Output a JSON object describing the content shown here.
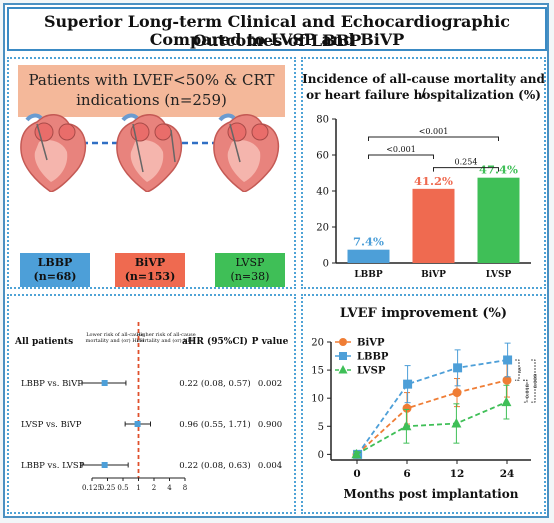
{
  "title": {
    "line1": "Superior Long-term Clinical and Echocardiographic Outcomes of LBBP",
    "line2": "Compared to LVSP and BiVP"
  },
  "patients": {
    "text_line1": "Patients with LVEF<50% & CRT",
    "text_line2": "indications (n=259)"
  },
  "groups": [
    {
      "name": "LBBP",
      "n": "(n=68)",
      "color": "#4d9fd8"
    },
    {
      "name": "BiVP",
      "n": "(n=153)",
      "color": "#ef6a50"
    },
    {
      "name": "LVSP",
      "n": "(n=38)",
      "color": "#3fbf57"
    }
  ],
  "chart_data": [
    {
      "type": "bar",
      "title": "Incidence of all-cause mortality and / or heart failure hospitalization (%)",
      "title_line1": "Incidence of all-cause mortality and /",
      "title_line2": "or heart failure hospitalization (%)",
      "categories": [
        "LBBP",
        "BiVP",
        "LVSP"
      ],
      "values": [
        7.4,
        41.2,
        47.4
      ],
      "value_labels": [
        "7.4%",
        "41.2%",
        "47.4%"
      ],
      "colors": [
        "#4d9fd8",
        "#ef6a50",
        "#3fbf57"
      ],
      "ylim": [
        0,
        80
      ],
      "yticks": [
        0,
        20,
        40,
        60,
        80
      ],
      "comparisons": [
        {
          "from": "LBBP",
          "to": "LVSP",
          "p": "<0.001"
        },
        {
          "from": "LBBP",
          "to": "BiVP",
          "p": "<0.001"
        },
        {
          "from": "BiVP",
          "to": "LVSP",
          "p": "0.254"
        }
      ]
    },
    {
      "type": "forest",
      "row_header": "All patients",
      "left_note_line1": "Lower risk of all-cause",
      "left_note_line2": "mortality and (or) HFH",
      "right_note_line1": "Higher risk of all-cause",
      "right_note_line2": "mortality and (or) HFH",
      "col_ahr": "aHR (95%CI)",
      "col_p": "P value",
      "x_ticks": [
        "0.125",
        "0.25",
        "0.5",
        "1",
        "2",
        "4",
        "8"
      ],
      "rows": [
        {
          "label": "LBBP vs. BiVP",
          "hr": 0.22,
          "lo": 0.08,
          "hi": 0.57,
          "text": "0.22 (0.08, 0.57)",
          "p": "0.002"
        },
        {
          "label": "LVSP vs. BiVP",
          "hr": 0.96,
          "lo": 0.55,
          "hi": 1.71,
          "text": "0.96 (0.55, 1.71)",
          "p": "0.900"
        },
        {
          "label": "LBBP vs. LVSP",
          "hr": 0.22,
          "lo": 0.08,
          "hi": 0.63,
          "text": "0.22 (0.08, 0.63)",
          "p": "0.004"
        }
      ]
    },
    {
      "type": "line",
      "title": "LVEF improvement (%)",
      "xlabel": "Months post implantation",
      "x": [
        0,
        6,
        12,
        24
      ],
      "ylim": [
        -1,
        20
      ],
      "yticks": [
        0,
        5,
        10,
        15,
        20
      ],
      "series": [
        {
          "name": "BiVP",
          "values": [
            0,
            8.2,
            11,
            13.2
          ],
          "err": [
            0.5,
            2.8,
            2.5,
            3
          ],
          "color": "#ef7d35",
          "marker": "circle"
        },
        {
          "name": "LBBP",
          "values": [
            0,
            12.5,
            15.4,
            16.8
          ],
          "err": [
            0.5,
            3.3,
            3.2,
            3
          ],
          "color": "#4d9fd8",
          "marker": "square"
        },
        {
          "name": "LVSP",
          "values": [
            0,
            5,
            5.5,
            9.3
          ],
          "err": [
            0.5,
            3,
            3.5,
            3
          ],
          "color": "#3fbf57",
          "marker": "triangle"
        }
      ],
      "annotations": [
        "ns",
        "0.018",
        "0.009"
      ]
    }
  ]
}
